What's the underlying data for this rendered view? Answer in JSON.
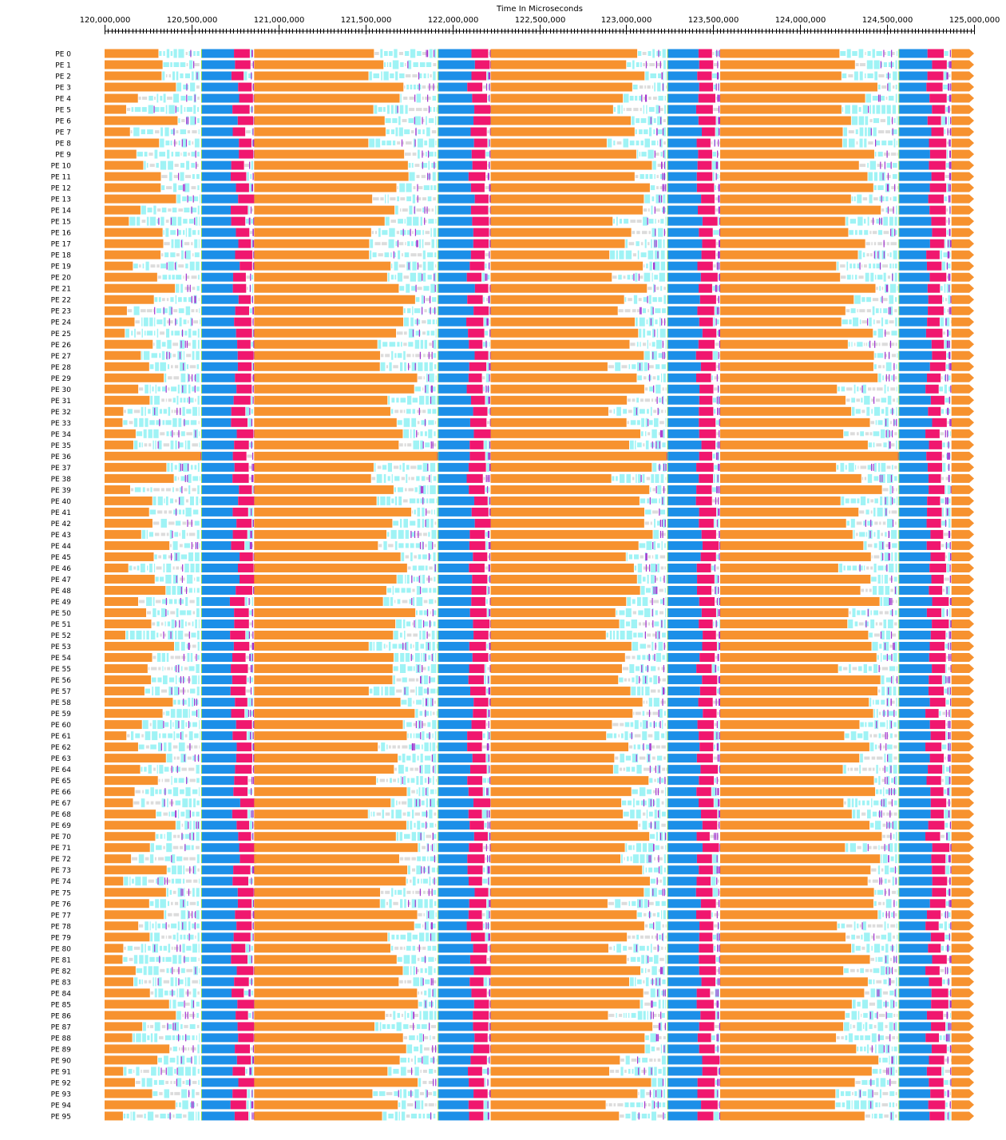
{
  "chart_data": {
    "type": "timeline",
    "title": "",
    "xlabel": "Time In Microseconds",
    "ylabel": "",
    "xlim": [
      120000000,
      125000000
    ],
    "x_ticks": [
      120000000,
      120500000,
      121000000,
      121500000,
      122000000,
      122500000,
      123000000,
      123500000,
      124000000,
      124500000,
      125000000
    ],
    "x_tick_labels": [
      "120,000,000",
      "120,500,000",
      "121,000,000",
      "121,500,000",
      "122,000,000",
      "122,500,000",
      "123,000,000",
      "123,500,000",
      "124,000,000",
      "124,500,000",
      "125,000,000"
    ],
    "minor_tick_step": 20000,
    "rows": [
      "PE 0",
      "PE 1",
      "PE 2",
      "PE 3",
      "PE 4",
      "PE 5",
      "PE 6",
      "PE 7",
      "PE 8",
      "PE 9",
      "PE 10",
      "PE 11",
      "PE 12",
      "PE 13",
      "PE 14",
      "PE 15",
      "PE 16",
      "PE 17",
      "PE 18",
      "PE 19",
      "PE 20",
      "PE 21",
      "PE 22",
      "PE 23",
      "PE 24",
      "PE 25",
      "PE 26",
      "PE 27",
      "PE 28",
      "PE 29",
      "PE 30",
      "PE 31",
      "PE 32",
      "PE 33",
      "PE 34",
      "PE 35",
      "PE 36",
      "PE 37",
      "PE 38",
      "PE 39",
      "PE 40",
      "PE 41",
      "PE 42",
      "PE 43",
      "PE 44",
      "PE 45",
      "PE 46",
      "PE 47",
      "PE 48",
      "PE 49",
      "PE 50",
      "PE 51",
      "PE 52",
      "PE 53",
      "PE 54",
      "PE 55",
      "PE 56",
      "PE 57",
      "PE 58",
      "PE 59",
      "PE 60",
      "PE 61",
      "PE 62",
      "PE 63",
      "PE 64",
      "PE 65",
      "PE 66",
      "PE 67",
      "PE 68",
      "PE 69",
      "PE 70",
      "PE 71",
      "PE 72",
      "PE 73",
      "PE 74",
      "PE 75",
      "PE 76",
      "PE 77",
      "PE 78",
      "PE 79",
      "PE 80",
      "PE 81",
      "PE 82",
      "PE 83",
      "PE 84",
      "PE 85",
      "PE 86",
      "PE 87",
      "PE 88",
      "PE 89",
      "PE 90",
      "PE 91",
      "PE 92",
      "PE 93",
      "PE 94",
      "PE 95"
    ],
    "colors": {
      "orange": "#f7922f",
      "blue": "#1c8fe8",
      "pink": "#f0176f",
      "cyan": "#9ff3f5",
      "grey": "#dcdcdc",
      "purple": "#a535d0",
      "green": "#8ad22b",
      "axis": "#000000"
    },
    "phases": {
      "compute_1_start": 120000000,
      "compute_1_end_range": [
        120100000,
        120500000
      ],
      "blue_1_start": 120560000,
      "blue_1_end_range": [
        120720000,
        120780000
      ],
      "pink_1_width_range": [
        70000,
        100000
      ],
      "compute_2_start": 120860000,
      "compute_2_end_range": [
        121510000,
        121900000
      ],
      "blue_2_start": 121920000,
      "blue_2_end_range": [
        122080000,
        122130000
      ],
      "pink_2_width_range": [
        75000,
        100000
      ],
      "compute_3_start": 122220000,
      "compute_3_end_range": [
        122880000,
        123220000
      ],
      "blue_3_start": 123240000,
      "blue_3_end_range": [
        123400000,
        123440000
      ],
      "pink_3_width_range": [
        75000,
        100000
      ],
      "compute_4_start": 123540000,
      "compute_4_end_range": [
        124200000,
        124540000
      ],
      "blue_4_start": 124570000,
      "blue_4_end_range": [
        124720000,
        124760000
      ],
      "pink_4_width_range": [
        70000,
        100000
      ],
      "compute_5_start": 124870000,
      "compute_5_end": 125000000
    }
  }
}
